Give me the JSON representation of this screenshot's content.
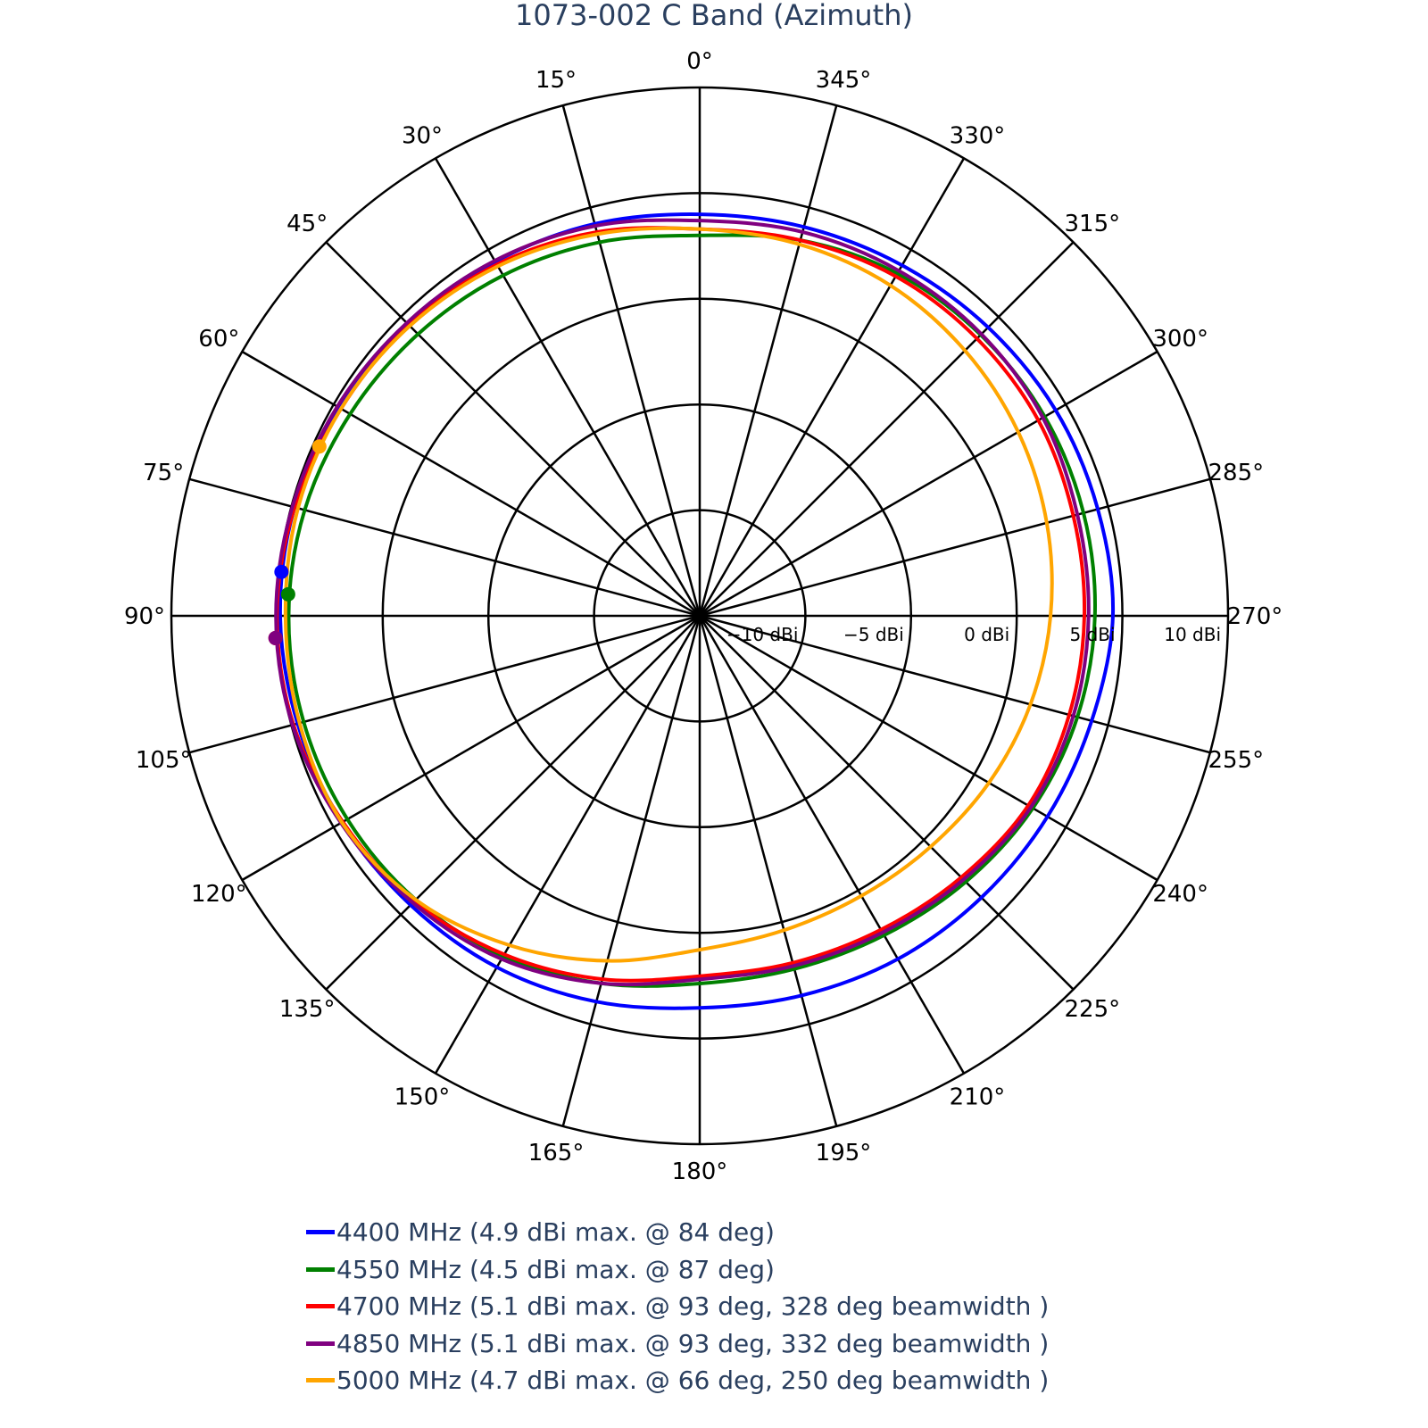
{
  "title": "1073-002 C Band (Azimuth)",
  "chart_data": {
    "type": "polar-line",
    "title": "1073-002 C Band (Azimuth)",
    "angular_axis": {
      "direction": "counterclockwise",
      "rotation_zero": "top",
      "dtick": 15,
      "tick_labels": [
        "0°",
        "15°",
        "30°",
        "45°",
        "60°",
        "75°",
        "90°",
        "105°",
        "120°",
        "135°",
        "150°",
        "165°",
        "180°",
        "195°",
        "210°",
        "225°",
        "240°",
        "255°",
        "270°",
        "285°",
        "300°",
        "315°",
        "330°",
        "345°"
      ]
    },
    "radial_axis": {
      "range": [
        -15,
        10
      ],
      "tick_values": [
        -10,
        -5,
        0,
        5,
        10
      ],
      "tick_labels": [
        "−10 dBi",
        "−5 dBi",
        "0 dBi",
        "5 dBi",
        "10 dBi"
      ],
      "angle": 270
    },
    "theta": [
      0,
      15,
      30,
      45,
      60,
      75,
      90,
      105,
      120,
      135,
      150,
      165,
      180,
      195,
      210,
      225,
      240,
      255,
      270,
      285,
      300,
      315,
      330,
      345
    ],
    "series": [
      {
        "name": "4400 MHz (4.9 dBi max. @ 84 deg)",
        "color": "#0000ff",
        "values": [
          4.0,
          4.2,
          4.35,
          4.55,
          4.7,
          4.85,
          4.85,
          4.7,
          4.55,
          4.35,
          4.2,
          3.9,
          3.55,
          3.6,
          3.75,
          3.85,
          4.0,
          4.2,
          4.55,
          4.5,
          4.45,
          4.3,
          4.15,
          4.05
        ],
        "marker": {
          "theta": 84,
          "r": 4.9
        }
      },
      {
        "name": "4550 MHz (4.5 dBi max. @ 87 deg)",
        "color": "#008000",
        "values": [
          3.0,
          3.3,
          3.6,
          3.85,
          4.1,
          4.35,
          4.45,
          4.4,
          4.25,
          4.0,
          3.6,
          3.0,
          2.4,
          2.3,
          2.45,
          2.8,
          3.2,
          3.5,
          3.7,
          3.8,
          3.85,
          3.8,
          3.7,
          3.4
        ],
        "marker": {
          "theta": 87,
          "r": 4.5
        }
      },
      {
        "name": "4700 MHz (5.1 dBi max. @ 93 deg, 328 deg beamwidth )",
        "color": "#ff0000",
        "values": [
          3.3,
          3.8,
          4.2,
          4.45,
          4.6,
          4.85,
          5.0,
          4.9,
          4.5,
          4.1,
          3.5,
          2.8,
          2.05,
          2.0,
          2.15,
          2.5,
          2.95,
          3.1,
          3.2,
          3.3,
          3.5,
          3.55,
          3.55,
          3.4
        ],
        "marker": {
          "theta": 93,
          "r": 5.1
        }
      },
      {
        "name": "4850 MHz (5.1 dBi max. @ 93 deg, 332 deg beamwidth )",
        "color": "#800080",
        "values": [
          3.7,
          4.1,
          4.4,
          4.6,
          4.8,
          4.95,
          5.05,
          4.95,
          4.6,
          4.2,
          3.75,
          3.0,
          2.2,
          2.15,
          2.3,
          2.65,
          3.1,
          3.3,
          3.4,
          3.5,
          3.75,
          3.85,
          3.85,
          3.8
        ],
        "marker": {
          "theta": 93,
          "r": 5.1
        }
      },
      {
        "name": "5000 MHz (4.7 dBi max. @ 66 deg, 250 deg beamwidth )",
        "color": "#ffa500",
        "values": [
          3.3,
          3.7,
          4.1,
          4.4,
          4.6,
          4.68,
          4.6,
          4.6,
          4.55,
          4.0,
          3.0,
          1.9,
          0.8,
          0.4,
          0.3,
          0.45,
          0.8,
          1.2,
          1.6,
          2.0,
          2.4,
          2.75,
          3.05,
          3.2
        ],
        "marker": {
          "theta": 66,
          "r": 4.7
        }
      }
    ],
    "legend_position": "bottom"
  }
}
